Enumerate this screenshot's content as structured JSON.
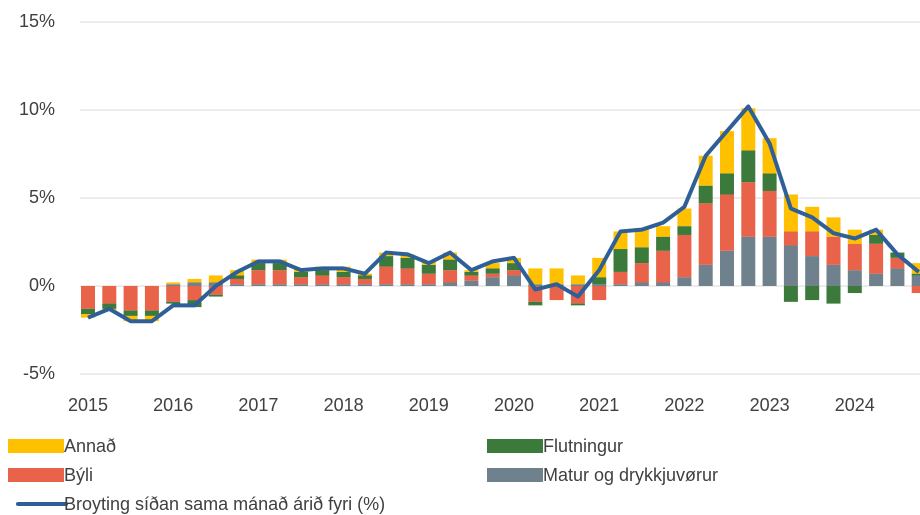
{
  "chart_data": {
    "type": "bar",
    "stacked": true,
    "categories": [
      "2015",
      null,
      null,
      null,
      "2016",
      null,
      null,
      null,
      "2017",
      null,
      null,
      null,
      "2018",
      null,
      null,
      null,
      "2019",
      null,
      null,
      null,
      "2020",
      null,
      null,
      null,
      "2021",
      null,
      null,
      null,
      "2022",
      null,
      null,
      null,
      "2023",
      null,
      null,
      null,
      "2024",
      null,
      null,
      null
    ],
    "ylim": [
      -5,
      15
    ],
    "yticks": [
      {
        "value": -5,
        "label": "-5%"
      },
      {
        "value": 0,
        "label": "0%"
      },
      {
        "value": 5,
        "label": "5%"
      },
      {
        "value": 10,
        "label": "10%"
      },
      {
        "value": 15,
        "label": "15%"
      }
    ],
    "grid": true,
    "legend": "bottom",
    "series": [
      {
        "name": "Matur og drykkjuvørur",
        "color": "#6e818d",
        "values": [
          0,
          0,
          0,
          0,
          0.1,
          0.2,
          0.2,
          0.1,
          0.1,
          0.1,
          0.1,
          0.1,
          0.1,
          0.1,
          0.1,
          0.1,
          0.1,
          0.2,
          0.3,
          0.5,
          0.6,
          0.1,
          0.1,
          0.1,
          0.1,
          0.1,
          0.2,
          0.2,
          0.5,
          1.2,
          2.0,
          2.8,
          2.8,
          2.3,
          1.7,
          1.2,
          0.9,
          0.7,
          1.0,
          0.6
        ]
      },
      {
        "name": "Býli",
        "color": "#e8634a",
        "values": [
          -1.3,
          -1.0,
          -1.4,
          -1.4,
          -0.9,
          -0.8,
          -0.5,
          0.3,
          0.8,
          0.8,
          0.4,
          0.5,
          0.4,
          0.3,
          1.0,
          0.9,
          0.6,
          0.7,
          0.3,
          0.2,
          0.3,
          -0.9,
          -0.8,
          -1.0,
          -0.8,
          0.7,
          1.1,
          1.8,
          2.4,
          3.5,
          3.2,
          3.1,
          2.6,
          0.8,
          1.4,
          1.6,
          1.5,
          1.7,
          0.6,
          -0.4
        ]
      },
      {
        "name": "Flutningur",
        "color": "#3b7a3a",
        "values": [
          -0.3,
          -0.3,
          -0.3,
          -0.3,
          -0.1,
          -0.4,
          -0.1,
          0.2,
          0.4,
          0.4,
          0.3,
          0.3,
          0.3,
          0.2,
          0.6,
          0.6,
          0.5,
          0.6,
          0.2,
          0.3,
          0.4,
          -0.2,
          0,
          -0.1,
          0.4,
          1.3,
          0.9,
          0.8,
          0.5,
          1.0,
          1.2,
          1.8,
          1.0,
          -0.9,
          -0.8,
          -1.0,
          -0.4,
          0.5,
          0.3,
          0.1
        ]
      },
      {
        "name": "Annað",
        "color": "#ffc000",
        "values": [
          -0.2,
          -0.1,
          -0.3,
          -0.3,
          0.1,
          0.2,
          0.4,
          0.3,
          0.2,
          0.2,
          0.2,
          0.2,
          0.3,
          0.1,
          0.2,
          0.2,
          0.2,
          0.4,
          0.1,
          0.3,
          0.3,
          0.9,
          0.9,
          0.5,
          1.1,
          1.0,
          1.1,
          0.6,
          1.0,
          1.7,
          2.4,
          2.4,
          2.0,
          2.1,
          1.4,
          1.1,
          0.8,
          0.3,
          0,
          0.6
        ]
      },
      {
        "name": "Broyting síðan sama mánað árið fyri (%)",
        "color": "#2e5f96",
        "type": "line",
        "values": [
          -1.8,
          -1.3,
          -2.0,
          -2.0,
          -1.1,
          -1.1,
          0.0,
          0.8,
          1.4,
          1.4,
          0.9,
          1.0,
          1.0,
          0.7,
          1.9,
          1.8,
          1.3,
          1.9,
          0.9,
          1.4,
          1.6,
          -0.2,
          0.1,
          -0.6,
          0.9,
          3.1,
          3.2,
          3.6,
          4.5,
          7.4,
          8.8,
          10.2,
          8.1,
          4.4,
          3.9,
          3.0,
          2.7,
          3.2,
          1.8,
          0.8
        ]
      }
    ]
  }
}
